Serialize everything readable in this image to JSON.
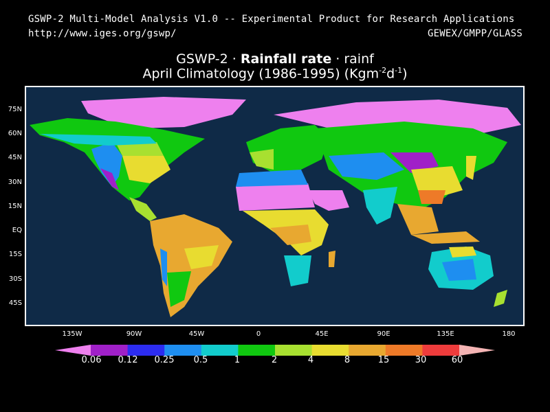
{
  "header": {
    "line1": "GSWP-2 Multi-Model Analysis V1.0 -- Experimental Product for Research Applications",
    "url": "http://www.iges.org/gswp/",
    "org": "GEWEX/GMPP/GLASS"
  },
  "title": {
    "prefix": "GSWP-2 · ",
    "variable": "Rainfall rate",
    "suffix": " · rainf",
    "subtitle_main": "April Climatology (1986-1995) (Kgm",
    "subtitle_exp1": "-2",
    "subtitle_mid": "d",
    "subtitle_exp2": "-1",
    "subtitle_end": ")"
  },
  "axes": {
    "lat_ticks": [
      "75N",
      "60N",
      "45N",
      "30N",
      "15N",
      "EQ",
      "15S",
      "30S",
      "45S"
    ],
    "lon_ticks": [
      "135W",
      "90W",
      "45W",
      "0",
      "45E",
      "90E",
      "135E",
      "180"
    ]
  },
  "colorbar": {
    "labels": [
      "0.06",
      "0.12",
      "0.25",
      "0.5",
      "1",
      "2",
      "4",
      "8",
      "15",
      "30",
      "60"
    ],
    "colors": [
      "#ee80ee",
      "#a020c8",
      "#2c2cf0",
      "#1e8ef0",
      "#12cccc",
      "#10c810",
      "#a8e030",
      "#e8dc30",
      "#e8a830",
      "#ee7a28",
      "#ee3c3c",
      "#f4b4b4"
    ]
  },
  "map": {
    "ocean_color": "#0f2a47"
  }
}
